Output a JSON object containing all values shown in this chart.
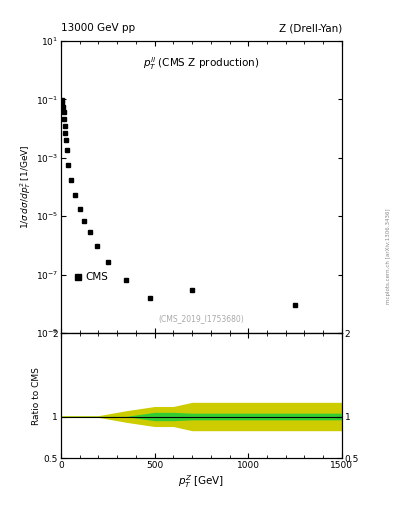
{
  "title_left": "13000 GeV pp",
  "title_right": "Z (Drell-Yan)",
  "legend_label": "CMS",
  "annotation": "(CMS_2019_I1753680)",
  "ylabel_top": "1/σ dσ/dp_T^2 [1/GeV]",
  "ylabel_bottom": "Ratio to CMS",
  "xlabel": "p_T^Z [GeV]",
  "side_label": "mcplots.cern.ch [arXiv:1306.3436]",
  "data_x": [
    2,
    5,
    8,
    11,
    14,
    17,
    20,
    23,
    26,
    30,
    40,
    55,
    75,
    100,
    125,
    155,
    195,
    250,
    350,
    475,
    700,
    1250
  ],
  "data_y": [
    0.085,
    0.095,
    0.075,
    0.055,
    0.038,
    0.022,
    0.012,
    0.007,
    0.004,
    0.0018,
    0.00055,
    0.00018,
    5.5e-05,
    1.8e-05,
    7e-06,
    2.8e-06,
    9.5e-07,
    2.8e-07,
    6.5e-08,
    1.6e-08,
    3e-08,
    9e-09
  ],
  "ratio_x_yellow": [
    0,
    50,
    100,
    200,
    350,
    500,
    550,
    600,
    700,
    800,
    900,
    1000,
    1100,
    1200,
    1350,
    1500
  ],
  "ratio_y_yellow_lo": [
    0.99,
    0.99,
    0.99,
    0.99,
    0.93,
    0.88,
    0.88,
    0.88,
    0.83,
    0.83,
    0.83,
    0.83,
    0.83,
    0.83,
    0.83,
    0.83
  ],
  "ratio_y_yellow_hi": [
    1.01,
    1.01,
    1.01,
    1.01,
    1.07,
    1.12,
    1.12,
    1.12,
    1.17,
    1.17,
    1.17,
    1.17,
    1.17,
    1.17,
    1.17,
    1.17
  ],
  "ratio_x_green": [
    0,
    50,
    100,
    200,
    350,
    500,
    550,
    600,
    700,
    800,
    900,
    1000,
    1100,
    1200,
    1350,
    1500
  ],
  "ratio_y_green_lo": [
    0.998,
    0.998,
    0.998,
    0.998,
    0.998,
    0.95,
    0.95,
    0.95,
    0.96,
    0.96,
    0.96,
    0.96,
    0.96,
    0.96,
    0.96,
    0.96
  ],
  "ratio_y_green_hi": [
    1.002,
    1.002,
    1.002,
    1.002,
    1.002,
    1.05,
    1.05,
    1.05,
    1.04,
    1.04,
    1.04,
    1.04,
    1.04,
    1.04,
    1.04,
    1.04
  ],
  "xlim": [
    0,
    1500
  ],
  "ylim_top_lo": 1e-09,
  "ylim_top_hi": 10,
  "ylim_bottom_lo": 0.5,
  "ylim_bottom_hi": 2.0,
  "marker_color": "#000000",
  "green_color": "#33cc33",
  "yellow_color": "#cccc00",
  "bg_color": "#ffffff",
  "annotation_color": "#aaaaaa"
}
